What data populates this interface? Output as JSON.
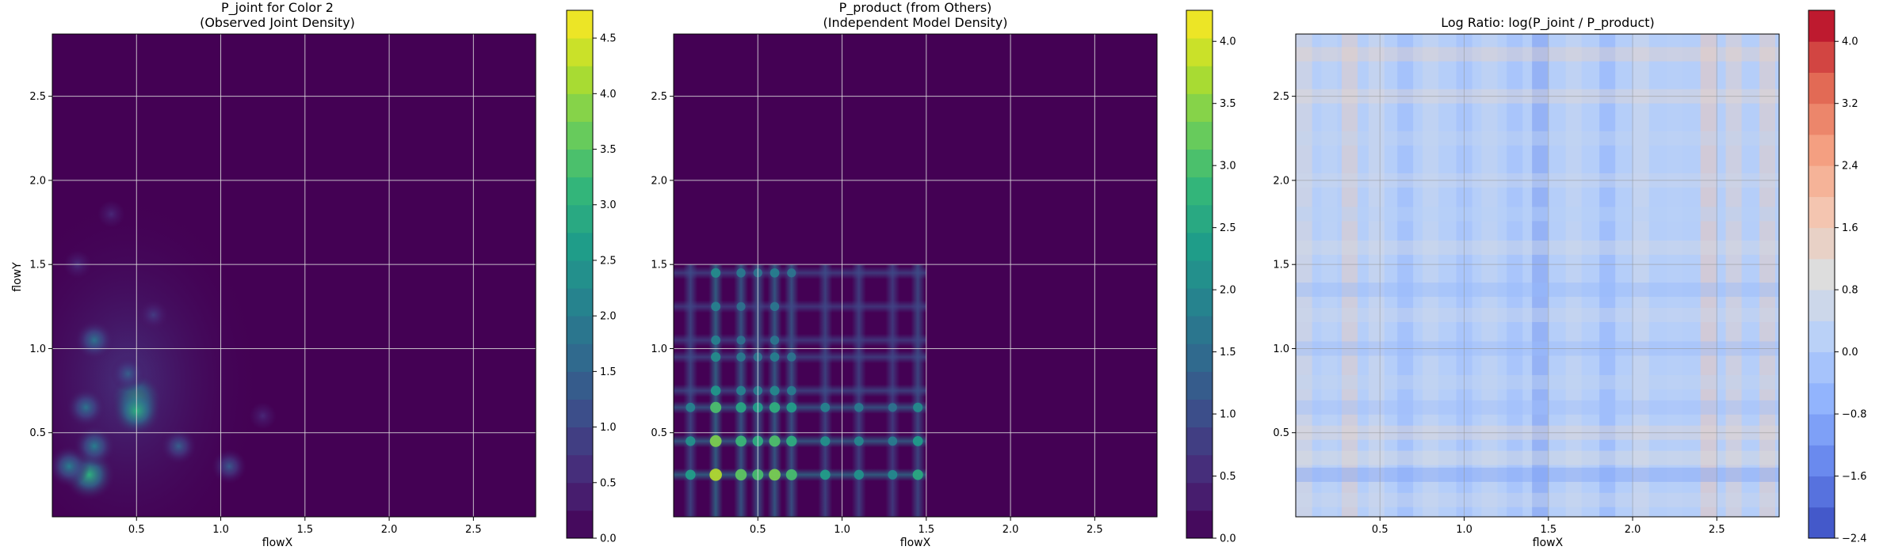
{
  "chart_data": [
    {
      "type": "heatmap",
      "title_line1": "P_joint for Color 2",
      "title_line2": "(Observed Joint Density)",
      "xlabel": "flowX",
      "ylabel": "flowY",
      "xlim": [
        0,
        2.87
      ],
      "ylim": [
        0,
        2.87
      ],
      "xticks": [
        "0.5",
        "1.0",
        "1.5",
        "2.0",
        "2.5"
      ],
      "yticks": [
        "0.5",
        "1.0",
        "1.5",
        "2.0",
        "2.5"
      ],
      "grid": true,
      "colormap": "viridis",
      "colorbar": {
        "ticks": [
          "0.0",
          "0.5",
          "1.0",
          "1.5",
          "2.0",
          "2.5",
          "3.0",
          "3.5",
          "4.0",
          "4.5"
        ],
        "min": 0,
        "max": 4.75
      },
      "background_color": "#440154",
      "hotspots": [
        {
          "x": 0.22,
          "y": 0.25,
          "value": 3.0
        },
        {
          "x": 0.1,
          "y": 0.3,
          "value": 2.0
        },
        {
          "x": 0.25,
          "y": 0.42,
          "value": 2.0
        },
        {
          "x": 0.5,
          "y": 0.7,
          "value": 3.2
        },
        {
          "x": 0.5,
          "y": 0.63,
          "value": 3.0
        },
        {
          "x": 0.25,
          "y": 1.05,
          "value": 1.8
        },
        {
          "x": 0.2,
          "y": 0.65,
          "value": 1.8
        },
        {
          "x": 0.45,
          "y": 0.85,
          "value": 1.4
        },
        {
          "x": 0.75,
          "y": 0.42,
          "value": 1.4
        },
        {
          "x": 1.05,
          "y": 0.3,
          "value": 1.3
        },
        {
          "x": 0.6,
          "y": 1.2,
          "value": 0.8
        },
        {
          "x": 0.15,
          "y": 1.5,
          "value": 0.6
        },
        {
          "x": 0.35,
          "y": 1.8,
          "value": 0.5
        },
        {
          "x": 1.25,
          "y": 0.6,
          "value": 0.5
        }
      ]
    },
    {
      "type": "heatmap",
      "title_line1": "P_product (from Others)",
      "title_line2": "(Independent Model Density)",
      "xlabel": "flowX",
      "ylabel": "",
      "xlim": [
        0,
        2.87
      ],
      "ylim": [
        0,
        2.87
      ],
      "xticks": [
        "0.5",
        "1.0",
        "1.5",
        "2.0",
        "2.5"
      ],
      "yticks": [
        "0.5",
        "1.0",
        "1.5",
        "2.0",
        "2.5"
      ],
      "grid": true,
      "colormap": "viridis",
      "colorbar": {
        "ticks": [
          "0.0",
          "0.5",
          "1.0",
          "1.5",
          "2.0",
          "2.5",
          "3.0",
          "3.5",
          "4.0"
        ],
        "min": 0,
        "max": 4.25
      },
      "background_color": "#440154",
      "x_bands": [
        {
          "x": 0.1,
          "w": 1.2
        },
        {
          "x": 0.25,
          "w": 1.9
        },
        {
          "x": 0.4,
          "w": 1.6
        },
        {
          "x": 0.5,
          "w": 1.5
        },
        {
          "x": 0.6,
          "w": 1.7
        },
        {
          "x": 0.7,
          "w": 1.5
        },
        {
          "x": 0.9,
          "w": 1.2
        },
        {
          "x": 1.1,
          "w": 1.1
        },
        {
          "x": 1.3,
          "w": 1.0
        },
        {
          "x": 1.45,
          "w": 1.3
        }
      ],
      "y_bands": [
        {
          "y": 0.25,
          "w": 2.0
        },
        {
          "y": 0.45,
          "w": 1.8
        },
        {
          "y": 0.65,
          "w": 1.6
        },
        {
          "y": 0.75,
          "w": 1.2
        },
        {
          "y": 0.95,
          "w": 1.1
        },
        {
          "y": 1.05,
          "w": 1.0
        },
        {
          "y": 1.25,
          "w": 1.0
        },
        {
          "y": 1.45,
          "w": 1.1
        }
      ],
      "x_extent": 1.5,
      "y_extent": 1.5
    },
    {
      "type": "heatmap",
      "title_line1": "Log Ratio: log(P_joint / P_product)",
      "title_line2": "",
      "xlabel": "flowX",
      "ylabel": "",
      "xlim": [
        0,
        2.87
      ],
      "ylim": [
        0,
        2.87
      ],
      "xticks": [
        "0.5",
        "1.0",
        "1.5",
        "2.0",
        "2.5"
      ],
      "yticks": [
        "0.5",
        "1.0",
        "1.5",
        "2.0",
        "2.5"
      ],
      "grid": true,
      "colormap": "coolwarm",
      "colorbar": {
        "ticks": [
          "-2.4",
          "-1.6",
          "-0.8",
          "0.0",
          "0.8",
          "1.6",
          "2.4",
          "3.2",
          "4.0"
        ],
        "min": -2.4,
        "max": 4.4
      },
      "col_bias": [
        {
          "x": 0.05,
          "v": 1.2
        },
        {
          "x": 0.2,
          "v": 0.4
        },
        {
          "x": 0.32,
          "v": 1.6
        },
        {
          "x": 0.48,
          "v": 0.8
        },
        {
          "x": 0.65,
          "v": -0.6
        },
        {
          "x": 0.8,
          "v": 0.6
        },
        {
          "x": 1.0,
          "v": -0.4
        },
        {
          "x": 1.15,
          "v": 0.5
        },
        {
          "x": 1.3,
          "v": -0.4
        },
        {
          "x": 1.45,
          "v": -1.3
        },
        {
          "x": 1.65,
          "v": 0.6
        },
        {
          "x": 1.85,
          "v": -0.8
        },
        {
          "x": 2.05,
          "v": 0.8
        },
        {
          "x": 2.25,
          "v": 0.2
        },
        {
          "x": 2.45,
          "v": 1.8
        },
        {
          "x": 2.6,
          "v": 1.4
        },
        {
          "x": 2.8,
          "v": 1.6
        }
      ],
      "row_bias": [
        {
          "y": 0.1,
          "v": 0.6
        },
        {
          "y": 0.25,
          "v": -1.0
        },
        {
          "y": 0.35,
          "v": 1.0
        },
        {
          "y": 0.5,
          "v": 1.2
        },
        {
          "y": 0.65,
          "v": -0.3
        },
        {
          "y": 0.8,
          "v": 0.4
        },
        {
          "y": 1.0,
          "v": -0.4
        },
        {
          "y": 1.2,
          "v": 0.6
        },
        {
          "y": 1.35,
          "v": -0.5
        },
        {
          "y": 1.6,
          "v": 0.8
        },
        {
          "y": 1.8,
          "v": 0.2
        },
        {
          "y": 2.0,
          "v": 0.6
        },
        {
          "y": 2.25,
          "v": 0.4
        },
        {
          "y": 2.5,
          "v": 1.2
        },
        {
          "y": 2.75,
          "v": 1.4
        }
      ]
    }
  ]
}
